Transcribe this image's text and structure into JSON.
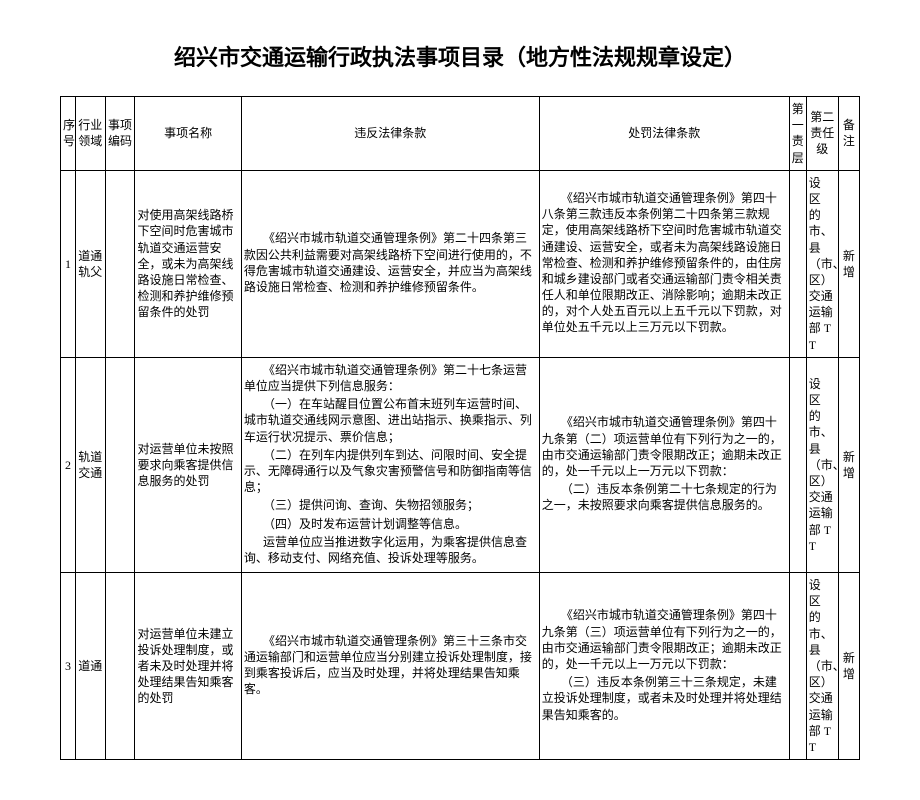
{
  "title": "绍兴市交通运输行政执法事项目录（地方性法规规章设定）",
  "headers": {
    "seq": "序号",
    "field": "行业领域",
    "code": "事项编码",
    "name": "事项名称",
    "law1": "违反法律条款",
    "law2": "处罚法律条款",
    "lvl1": "第一责层",
    "lvl2": "第二责任级",
    "note": "备注"
  },
  "rows": [
    {
      "seq": "1",
      "field": "道通轨父",
      "code": "",
      "name": "对使用高架线路桥下空间时危害城市轨道交通运营安全，或未为高架线路设施日常检查、检测和养护维修预留条件的处罚",
      "law1": "《绍兴市城市轨道交通管理条例》第二十四条第三款因公共利益需要对高架线路桥下空间进行使用的，不得危害城市轨道交通建设、运营安全，并应当为高架线路设施日常检查、检测和养护维修预留条件。",
      "law2": "《绍兴市城市轨道交通管理条例》第四十八条第三款违反本条例第二十四条第三款规定，使用高架线路桥下空间时危害城市轨道交通建设、运营安全，或者未为高架线路设施日常检查、检测和养护维修预留条件的，由住房和城乡建设部门或者交通运输部门责令相关责任人和单位限期改正、消除影响；逾期未改正的，对个人处五百元以上五千元以下罚款，对单位处五千元以上三万元以下罚款。",
      "lvl1": "",
      "lvl2": "设 区 的市、县（市、区）交通运输部 TT",
      "note": "新增"
    },
    {
      "seq": "2",
      "field": "轨道交通",
      "code": "",
      "name": "对运营单位未按照要求向乘客提供信息服务的处罚",
      "law1_lines": [
        "《绍兴市城市轨道交通管理条例》第二十七条运营单位应当提供下列信息服务：",
        "（一）在车站醒目位置公布首末班列车运营时间、城市轨道交通线网示意图、进出站指示、换乘指示、列车运行状况提示、票价信息；",
        "（二）在列车内提供列车到达、问限时间、安全提示、无障碍通行以及气象灾害预警信号和防御指南等信息；",
        "（三）提供问询、查询、失物招领服务；",
        "（四）及时发布运营计划调整等信息。",
        "运营单位应当推进数字化运用，为乘客提供信息查询、移动支付、网络充值、投诉处理等服务。"
      ],
      "law2_lines": [
        "《绍兴市城市轨道交通管理条例》第四十九条第（二）项运营单位有下列行为之一的，由市交通运输部门责令限期改正；逾期未改正的，处一千元以上一万元以下罚款：",
        "（二）违反本条例第二十七条规定的行为之一，未按照要求向乘客提供信息服务的。"
      ],
      "lvl1": "",
      "lvl2": "设 区 的市、县（市、区）交通运输部 TT",
      "note": "新增"
    },
    {
      "seq": "3",
      "field": "道通",
      "code": "",
      "name": "对运营单位未建立投诉处理制度，或者未及时处理并将处理结果告知乘客的处罚",
      "law1": "《绍兴市城市轨道交通管理条例》第三十三条市交通运输部门和运营单位应当分别建立投诉处理制度，接到乘客投诉后，应当及时处理，并将处理结果告知乘客。",
      "law2_lines": [
        "《绍兴市城市轨道交通管理条例》第四十九条第（三）项运营单位有下列行为之一的，由市交通运输部门责令限期改正；逾期未改正的，处一千元以上一万元以下罚款：",
        "（三）违反本条例第三十三条规定，未建立投诉处理制度，或者未及时处理并将处理结果告知乘客的。"
      ],
      "lvl1": "",
      "lvl2": "设 区 的市、县（市、区）交通运输部 TT",
      "note": "新增"
    }
  ]
}
